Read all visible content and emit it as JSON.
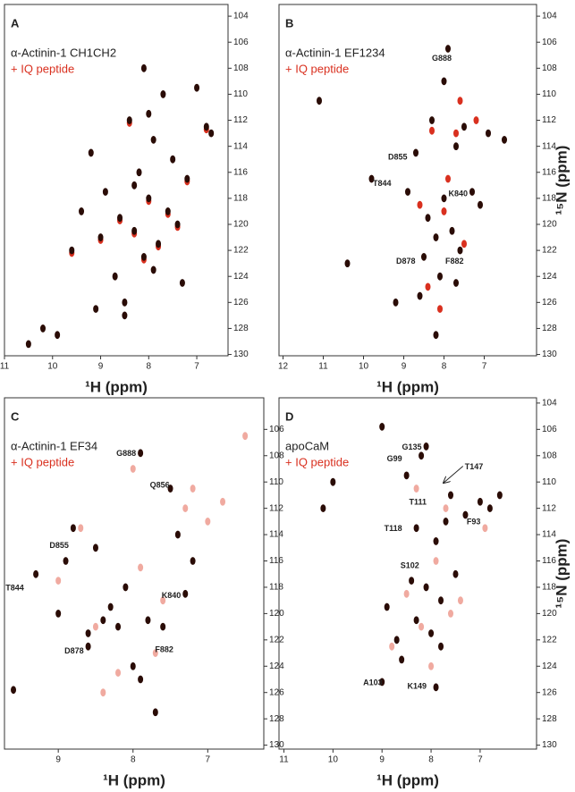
{
  "chart_data": [
    {
      "type": "scatter",
      "panel": "A",
      "xlabel": "¹H (ppm)",
      "xlim": [
        11,
        6.35
      ],
      "ylim": [
        103.1,
        130.1
      ],
      "xticks": [
        11,
        10,
        9,
        8,
        7
      ],
      "yticks": [
        104,
        106,
        108,
        110,
        112,
        114,
        116,
        118,
        120,
        122,
        124,
        126,
        128,
        130
      ],
      "series": [
        {
          "name": "α-Actinin-1 CH1CH2",
          "color": "#2a0c06",
          "x": [
            10.5,
            10.2,
            9.9,
            9.6,
            9.4,
            9.2,
            9.0,
            8.9,
            8.7,
            8.6,
            8.5,
            8.4,
            8.3,
            8.2,
            8.1,
            8.0,
            7.9,
            7.8,
            7.7,
            7.6,
            7.5,
            7.4,
            7.3,
            7.2,
            7.0,
            6.8,
            6.7,
            8.5,
            8.1,
            7.9,
            8.3,
            9.1,
            8.0
          ],
          "values": [
            129.2,
            128.0,
            128.5,
            122.0,
            119.0,
            114.5,
            121.0,
            117.5,
            124.0,
            119.5,
            127.0,
            112.0,
            120.5,
            116.0,
            122.5,
            118.0,
            113.5,
            121.5,
            110.0,
            119.0,
            115.0,
            120.0,
            124.5,
            116.5,
            109.5,
            112.5,
            113.0,
            126.0,
            108.0,
            123.5,
            117.0,
            126.5,
            111.5
          ]
        },
        {
          "name": "+ IQ peptide",
          "color": "#d9301f",
          "x": [
            9.6,
            9.0,
            8.6,
            8.3,
            8.0,
            7.8,
            7.6,
            7.4,
            7.2,
            6.8,
            8.4,
            8.1
          ],
          "values": [
            122.2,
            121.2,
            119.7,
            120.7,
            118.2,
            121.7,
            119.2,
            120.2,
            116.7,
            112.7,
            112.2,
            122.7
          ]
        }
      ]
    },
    {
      "type": "scatter",
      "panel": "B",
      "xlabel": "¹H (ppm)",
      "ylabel": "¹⁵N (ppm)",
      "xlim": [
        12.1,
        5.7
      ],
      "ylim": [
        103.1,
        130.1
      ],
      "xticks": [
        12,
        11,
        10,
        9,
        8,
        7
      ],
      "yticks": [
        104,
        106,
        108,
        110,
        112,
        114,
        116,
        118,
        120,
        122,
        124,
        126,
        128,
        130
      ],
      "series": [
        {
          "name": "α-Actinin-1 EF1234",
          "color": "#2a0c06",
          "x": [
            11.1,
            10.4,
            9.8,
            9.2,
            8.9,
            8.7,
            8.5,
            8.4,
            8.3,
            8.2,
            8.1,
            8.0,
            7.9,
            7.8,
            7.7,
            7.6,
            7.5,
            7.3,
            7.1,
            6.9,
            8.6,
            8.2,
            7.7,
            8.0,
            6.5
          ],
          "values": [
            110.5,
            123.0,
            116.5,
            126.0,
            117.5,
            114.5,
            122.5,
            119.5,
            112.0,
            121.0,
            124.0,
            118.0,
            106.5,
            120.5,
            114.0,
            122.0,
            112.5,
            117.5,
            118.5,
            113.0,
            125.5,
            128.5,
            124.5,
            109.0,
            113.5
          ]
        },
        {
          "name": "+ IQ peptide",
          "color": "#d9301f",
          "x": [
            8.3,
            8.0,
            7.7,
            7.5,
            8.4,
            7.9,
            7.2,
            8.1,
            8.6,
            7.6
          ],
          "values": [
            112.8,
            119.0,
            113.0,
            121.5,
            124.8,
            116.5,
            112.0,
            126.5,
            118.5,
            110.5
          ]
        }
      ],
      "annotations": [
        {
          "text": "G888",
          "x": 7.7,
          "y": 107.2
        },
        {
          "text": "D855",
          "x": 8.8,
          "y": 114.8
        },
        {
          "text": "T844",
          "x": 9.2,
          "y": 116.8
        },
        {
          "text": "K840",
          "x": 7.3,
          "y": 117.6
        },
        {
          "text": "D878",
          "x": 8.6,
          "y": 122.8
        },
        {
          "text": "F882",
          "x": 7.4,
          "y": 122.8
        }
      ]
    },
    {
      "type": "scatter",
      "panel": "C",
      "xlabel": "¹H (ppm)",
      "xlim": [
        9.72,
        6.25
      ],
      "ylim": [
        103.6,
        130.3
      ],
      "xticks": [
        9,
        8,
        7
      ],
      "yticks": [
        106,
        108,
        110,
        112,
        114,
        116,
        118,
        120,
        122,
        124,
        126,
        128,
        130
      ],
      "series": [
        {
          "name": "α-Actinin-1 EF34",
          "color": "#2a0c06",
          "x": [
            9.6,
            9.3,
            9.0,
            8.8,
            8.6,
            8.5,
            8.3,
            8.2,
            8.1,
            8.0,
            7.9,
            7.8,
            7.6,
            7.5,
            7.4,
            7.3,
            7.2,
            8.9,
            8.4,
            7.7,
            7.9,
            8.6
          ],
          "values": [
            125.8,
            117.0,
            120.0,
            113.5,
            122.5,
            115.0,
            119.5,
            121.0,
            118.0,
            124.0,
            107.8,
            120.5,
            121.0,
            110.5,
            114.0,
            118.5,
            116.0,
            116.0,
            120.5,
            127.5,
            125.0,
            121.5
          ]
        },
        {
          "name": "+ IQ peptide",
          "color": "#f0aaa0",
          "x": [
            9.0,
            8.7,
            8.5,
            8.2,
            7.9,
            7.6,
            7.3,
            7.0,
            6.8,
            6.5,
            8.0,
            7.7,
            8.4,
            7.2
          ],
          "values": [
            117.5,
            113.5,
            121.0,
            124.5,
            116.5,
            119.0,
            112.0,
            113.0,
            111.5,
            106.5,
            109.0,
            123.0,
            126.0,
            110.5
          ]
        }
      ],
      "annotations": [
        {
          "text": "G888",
          "x": 7.9,
          "y": 107.8
        },
        {
          "text": "Q856",
          "x": 7.45,
          "y": 110.2
        },
        {
          "text": "D855",
          "x": 8.8,
          "y": 114.8
        },
        {
          "text": "T844",
          "x": 9.4,
          "y": 118.0
        },
        {
          "text": "K840",
          "x": 7.3,
          "y": 118.6
        },
        {
          "text": "D878",
          "x": 8.6,
          "y": 122.8
        },
        {
          "text": "F882",
          "x": 7.4,
          "y": 122.7
        }
      ]
    },
    {
      "type": "scatter",
      "panel": "D",
      "xlabel": "¹H (ppm)",
      "ylabel": "¹⁵N (ppm)",
      "xlim": [
        11.1,
        5.85
      ],
      "ylim": [
        103.6,
        130.3
      ],
      "xticks": [
        11,
        10,
        9,
        8,
        7
      ],
      "yticks": [
        104,
        106,
        108,
        110,
        112,
        114,
        116,
        118,
        120,
        122,
        124,
        126,
        128,
        130
      ],
      "series": [
        {
          "name": "apoCaM",
          "color": "#2a0c06",
          "x": [
            10.0,
            10.2,
            9.0,
            8.9,
            8.7,
            8.5,
            8.4,
            8.3,
            8.2,
            8.1,
            8.0,
            7.9,
            7.8,
            7.7,
            7.6,
            7.5,
            7.3,
            7.0,
            6.8,
            6.6,
            8.6,
            8.3,
            9.0,
            7.9,
            8.1,
            7.8
          ],
          "values": [
            110.0,
            112.0,
            105.8,
            119.5,
            122.0,
            109.5,
            117.5,
            120.5,
            108.0,
            118.0,
            121.5,
            114.5,
            119.0,
            113.0,
            111.0,
            117.0,
            112.5,
            111.5,
            112.0,
            111.0,
            123.5,
            113.5,
            125.2,
            125.6,
            107.3,
            122.5
          ]
        },
        {
          "name": "+ IQ peptide",
          "color": "#f0aaa0",
          "x": [
            8.5,
            8.2,
            7.9,
            7.6,
            8.8,
            7.4,
            8.0,
            6.9,
            8.3,
            7.7
          ],
          "values": [
            118.5,
            121.0,
            116.0,
            120.0,
            122.5,
            119.0,
            124.0,
            113.5,
            110.5,
            112.0
          ]
        }
      ],
      "annotations": [
        {
          "text": "G135",
          "x": 8.1,
          "y": 107.3
        },
        {
          "text": "G99",
          "x": 8.5,
          "y": 108.2
        },
        {
          "text": "T147",
          "x": 7.35,
          "y": 108.8,
          "arrow_to": [
            7.8,
            110.2
          ]
        },
        {
          "text": "T111",
          "x": 8.0,
          "y": 111.5
        },
        {
          "text": "F93",
          "x": 6.9,
          "y": 113.0
        },
        {
          "text": "T118",
          "x": 8.5,
          "y": 113.5
        },
        {
          "text": "S102",
          "x": 8.15,
          "y": 116.3
        },
        {
          "text": "A103",
          "x": 8.9,
          "y": 125.2
        },
        {
          "text": "K149",
          "x": 8.0,
          "y": 125.5
        }
      ]
    }
  ]
}
